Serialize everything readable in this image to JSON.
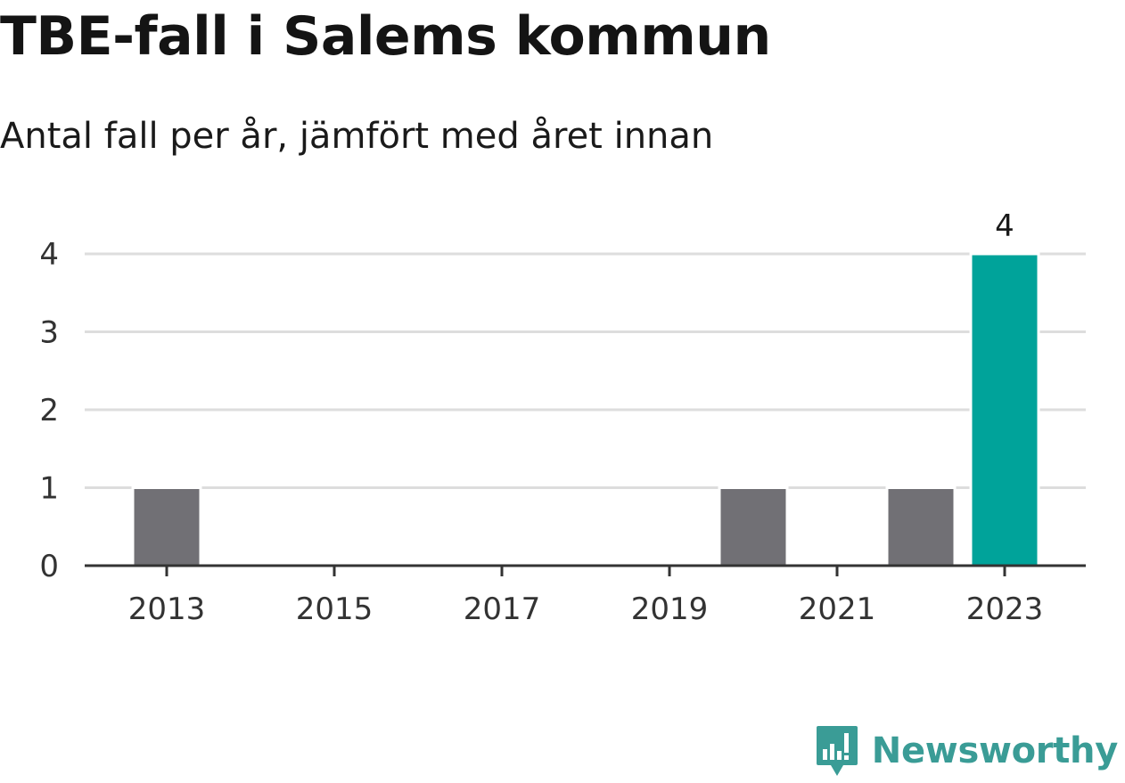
{
  "title": "TBE-fall i Salems kommun",
  "subtitle": "Antal fall per år, jämfört med året innan",
  "brand": {
    "name": "Newsworthy",
    "icon": "newsworthy-logo-icon"
  },
  "colors": {
    "previous_years": "#717075",
    "highlight": "#00a39a",
    "grid": "#dddddd",
    "axis": "#333333",
    "brand": "#3a9c96"
  },
  "chart_data": {
    "type": "bar",
    "categories": [
      "2013",
      "2014",
      "2015",
      "2016",
      "2017",
      "2018",
      "2019",
      "2020",
      "2021",
      "2022",
      "2023"
    ],
    "values": [
      1,
      0,
      0,
      0,
      0,
      0,
      0,
      1,
      0,
      1,
      4
    ],
    "highlight_category": "2023",
    "highlight_label": "4",
    "x_tick_labels": [
      "2013",
      "2015",
      "2017",
      "2019",
      "2021",
      "2023"
    ],
    "y_ticks": [
      0,
      1,
      2,
      3,
      4
    ],
    "ylim": [
      0,
      4
    ],
    "grid": true,
    "xlabel": "",
    "ylabel": ""
  }
}
